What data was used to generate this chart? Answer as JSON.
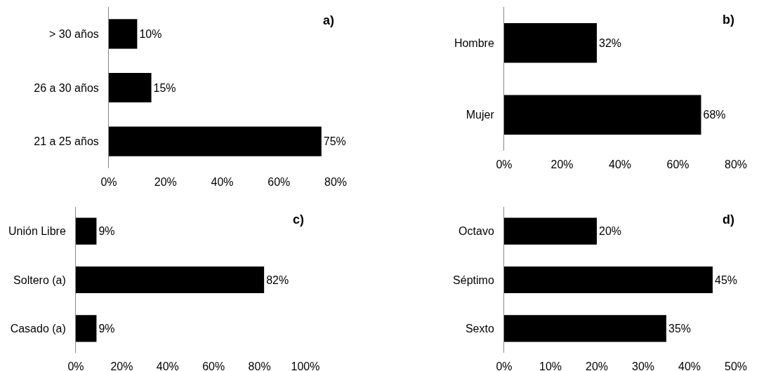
{
  "chart_data": [
    {
      "type": "bar",
      "orientation": "horizontal",
      "categories": [
        "> 30 años",
        "26 a 30 años",
        "21 a 25 años"
      ],
      "values": [
        10,
        15,
        75
      ],
      "value_labels": [
        "10%",
        "15%",
        "75%"
      ],
      "color": "#000000",
      "xlim": [
        0,
        80
      ],
      "xticks": [
        {
          "value": 0,
          "label": "0%"
        },
        {
          "value": 20,
          "label": "20%"
        },
        {
          "value": 40,
          "label": "40%"
        },
        {
          "value": 60,
          "label": "60%"
        },
        {
          "value": 80,
          "label": "80%"
        }
      ],
      "annotations": [
        "a)"
      ]
    },
    {
      "type": "bar",
      "orientation": "horizontal",
      "categories": [
        "Hombre",
        "Mujer"
      ],
      "values": [
        32,
        68
      ],
      "value_labels": [
        "32%",
        "68%"
      ],
      "color": "#000000",
      "xlim": [
        0,
        80
      ],
      "xticks": [
        {
          "value": 0,
          "label": "0%"
        },
        {
          "value": 20,
          "label": "20%"
        },
        {
          "value": 40,
          "label": "40%"
        },
        {
          "value": 60,
          "label": "60%"
        },
        {
          "value": 80,
          "label": "80%"
        }
      ],
      "annotations": [
        "b)"
      ]
    },
    {
      "type": "bar",
      "orientation": "horizontal",
      "categories": [
        "Unión Libre",
        "Soltero (a)",
        "Casado (a)"
      ],
      "values": [
        9,
        82,
        9
      ],
      "value_labels": [
        "9%",
        "82%",
        "9%"
      ],
      "color": "#000000",
      "xlim": [
        0,
        100
      ],
      "xticks": [
        {
          "value": 0,
          "label": "0%"
        },
        {
          "value": 20,
          "label": "20%"
        },
        {
          "value": 40,
          "label": "40%"
        },
        {
          "value": 60,
          "label": "60%"
        },
        {
          "value": 80,
          "label": "80%"
        },
        {
          "value": 100,
          "label": "100%"
        }
      ],
      "annotations": [
        "c)"
      ]
    },
    {
      "type": "bar",
      "orientation": "horizontal",
      "categories": [
        "Octavo",
        "Séptimo",
        "Sexto"
      ],
      "values": [
        20,
        45,
        35
      ],
      "value_labels": [
        "20%",
        "45%",
        "35%"
      ],
      "color": "#000000",
      "xlim": [
        0,
        50
      ],
      "xticks": [
        {
          "value": 0,
          "label": "0%"
        },
        {
          "value": 10,
          "label": "10%"
        },
        {
          "value": 20,
          "label": "20%"
        },
        {
          "value": 30,
          "label": "30%"
        },
        {
          "value": 40,
          "label": "40%"
        },
        {
          "value": 50,
          "label": "50%"
        }
      ],
      "annotations": [
        "d)"
      ]
    }
  ]
}
